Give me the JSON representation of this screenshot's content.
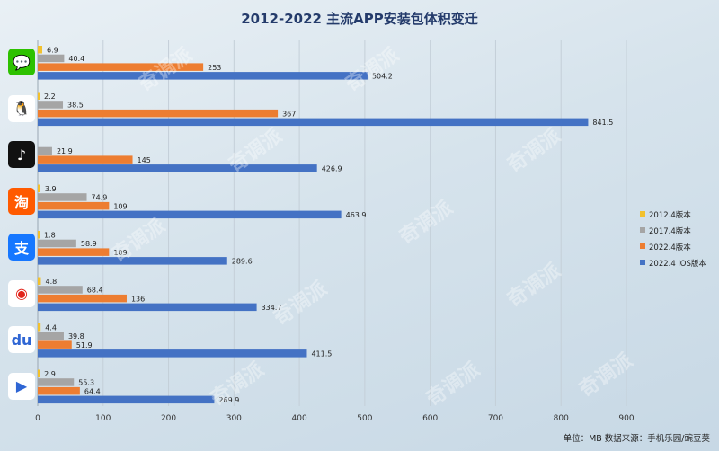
{
  "chart_data": {
    "type": "bar",
    "orientation": "horizontal",
    "title": "2012-2022 主流APP安装包体积变迁",
    "categories": [
      "微信",
      "QQ",
      "抖音",
      "淘宝",
      "支付宝",
      "微博",
      "百度",
      "优酷"
    ],
    "series": [
      {
        "name": "2012.4版本",
        "color": "#f2c12e",
        "values": [
          6.9,
          2.2,
          null,
          3.9,
          1.8,
          4.8,
          4.4,
          2.9
        ]
      },
      {
        "name": "2017.4版本",
        "color": "#a5a5a5",
        "values": [
          40.4,
          38.5,
          21.9,
          74.9,
          58.9,
          68.4,
          39.8,
          55.3
        ]
      },
      {
        "name": "2022.4版本",
        "color": "#ed7d31",
        "values": [
          253,
          367,
          145,
          109,
          109,
          136,
          51.9,
          64.4
        ]
      },
      {
        "name": "2022.4 iOS版本",
        "color": "#4472c4",
        "values": [
          504.2,
          841.5,
          426.9,
          463.9,
          289.6,
          334.7,
          411.5,
          269.9
        ]
      }
    ],
    "xlim": [
      0,
      900
    ],
    "xticks": [
      0,
      100,
      200,
      300,
      400,
      500,
      600,
      700,
      800,
      900
    ],
    "legend_position": "right"
  },
  "icons": [
    {
      "name": "wechat-icon",
      "color": "#2dc100",
      "glyph": "💬"
    },
    {
      "name": "qq-icon",
      "color": "#ffffff",
      "glyph": "🐧"
    },
    {
      "name": "douyin-icon",
      "color": "#111111",
      "glyph": "♪"
    },
    {
      "name": "taobao-icon",
      "color": "#ff5a00",
      "glyph": "淘"
    },
    {
      "name": "alipay-icon",
      "color": "#1677ff",
      "glyph": "支"
    },
    {
      "name": "weibo-icon",
      "color": "#ffffff",
      "glyph": "◉"
    },
    {
      "name": "baidu-icon",
      "color": "#ffffff",
      "glyph": "du"
    },
    {
      "name": "youku-icon",
      "color": "#ffffff",
      "glyph": "▶"
    }
  ],
  "source": "单位：MB  数据来源：手机乐园/豌豆荚",
  "watermark": "奇调派"
}
